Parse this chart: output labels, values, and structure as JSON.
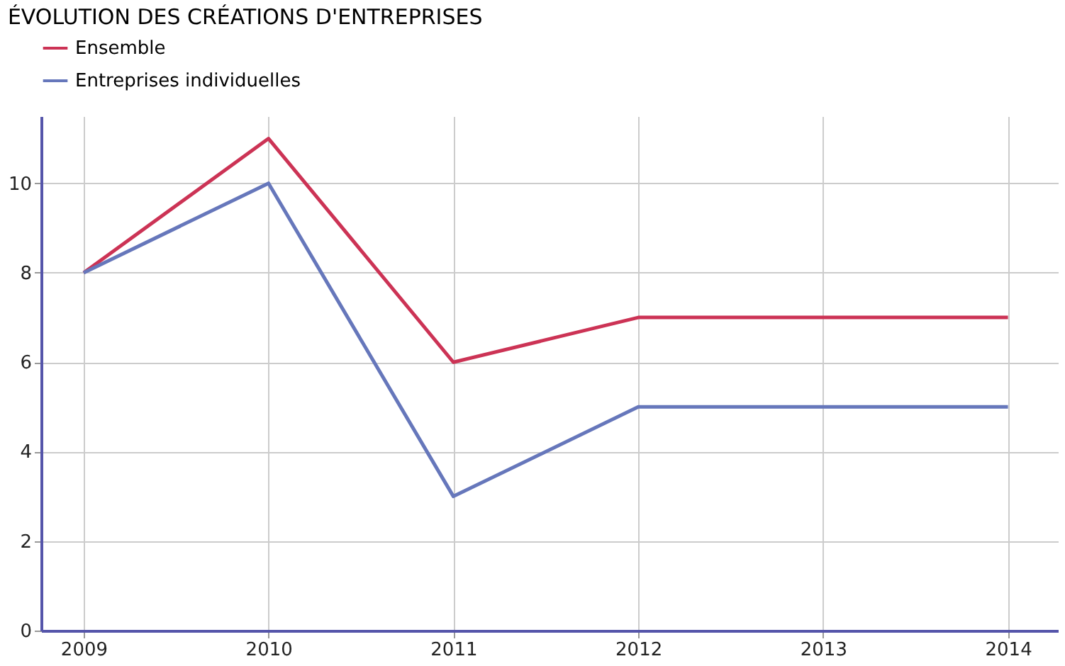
{
  "chart_data": {
    "type": "line",
    "title": "ÉVOLUTION DES CRÉATIONS D'ENTREPRISES",
    "x": [
      2009,
      2010,
      2011,
      2012,
      2013,
      2014
    ],
    "series": [
      {
        "name": "Ensemble",
        "color": "#cc3355",
        "values": [
          8,
          11,
          6,
          7,
          7,
          7
        ]
      },
      {
        "name": "Entreprises individuelles",
        "color": "#6677bb",
        "values": [
          8,
          10,
          3,
          5,
          5,
          5
        ]
      }
    ],
    "xlim": [
      2008.77,
      2014.27
    ],
    "xticks": [
      2009,
      2010,
      2011,
      2012,
      2013,
      2014
    ],
    "ylim": [
      0,
      11.5
    ],
    "yticks": [
      0,
      2,
      4,
      6,
      8,
      10
    ],
    "grid": true,
    "legend": "top left",
    "marker": "none",
    "line_style": "solid"
  }
}
